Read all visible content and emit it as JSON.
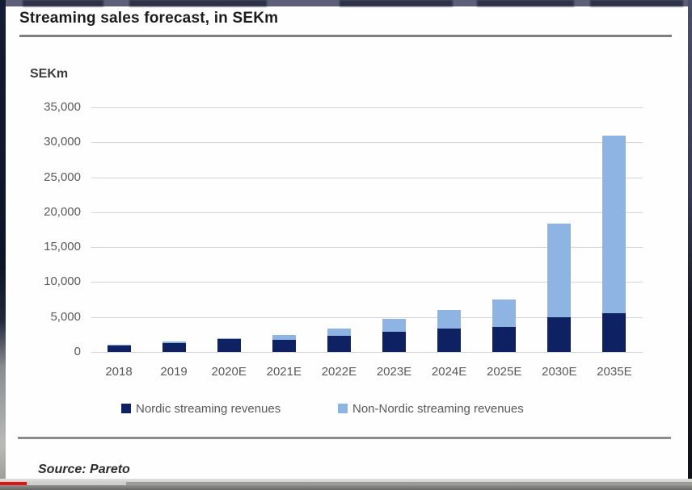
{
  "page": {
    "title": "Streaming sales forecast, in SEKm",
    "unit_label": "SEKm",
    "source": "Source: Pareto"
  },
  "chart_data": {
    "type": "bar",
    "stacked": true,
    "title": "Streaming sales forecast, in SEKm",
    "ylabel": "SEKm",
    "categories": [
      "2018",
      "2019",
      "2020E",
      "2021E",
      "2022E",
      "2023E",
      "2024E",
      "2025E",
      "2030E",
      "2035E"
    ],
    "series": [
      {
        "name": "Nordic streaming revenues",
        "color": "#0e2163",
        "values": [
          900,
          1300,
          1800,
          1700,
          2300,
          2900,
          3300,
          3600,
          5000,
          5600
        ]
      },
      {
        "name": "Non-Nordic streaming revenues",
        "color": "#8eb4e3",
        "values": [
          100,
          150,
          200,
          700,
          1000,
          1800,
          2700,
          3900,
          13400,
          25400
        ]
      }
    ],
    "ylim": [
      0,
      35000
    ],
    "ytick_interval": 5000,
    "ytick_labels": [
      "0",
      "5,000",
      "10,000",
      "15,000",
      "20,000",
      "25,000",
      "30,000",
      "35,000"
    ],
    "grid": true,
    "legend_position": "bottom"
  },
  "video_player": {
    "progress_played_percent": 3.8,
    "progress_buffered_percent": 18.2,
    "played_color": "#e01313"
  }
}
